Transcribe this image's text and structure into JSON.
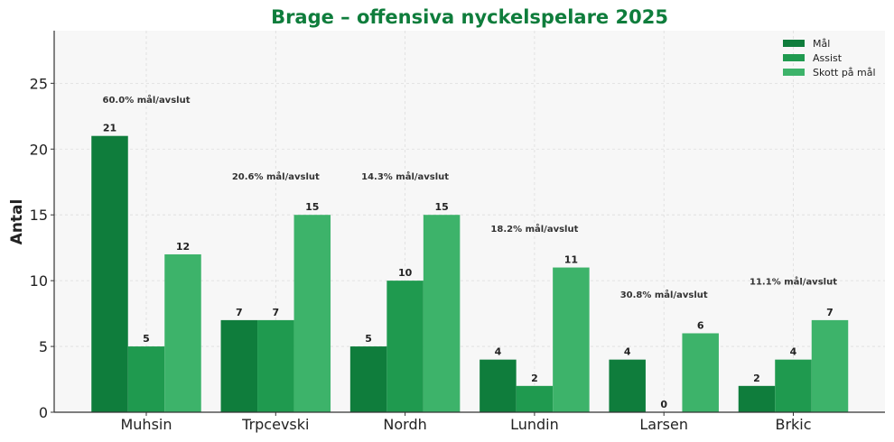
{
  "chart_data": {
    "type": "bar",
    "title": "Brage – offensiva nyckelspelare 2025",
    "xlabel": "",
    "ylabel": "Antal",
    "categories": [
      "Muhsin",
      "Trpcevski",
      "Nordh",
      "Lundin",
      "Larsen",
      "Brkic"
    ],
    "series": [
      {
        "name": "Mål",
        "values": [
          21,
          7,
          5,
          4,
          4,
          2
        ],
        "color": "#0f7d3c"
      },
      {
        "name": "Assist",
        "values": [
          5,
          7,
          10,
          2,
          0,
          4
        ],
        "color": "#1f9a4f"
      },
      {
        "name": "Skott på mål",
        "values": [
          12,
          15,
          15,
          11,
          6,
          7
        ],
        "color": "#3db36a"
      }
    ],
    "annotations": [
      "60.0% mål/avslut",
      "20.6% mål/avslut",
      "14.3% mål/avslut",
      "18.2% mål/avslut",
      "30.8% mål/avslut",
      "11.1% mål/avslut"
    ],
    "annotation_y": [
      23.5,
      17.7,
      17.7,
      13.7,
      8.7,
      9.7
    ],
    "ylim": [
      0,
      29
    ],
    "yticks": [
      0,
      5,
      10,
      15,
      20,
      25
    ],
    "grid": true,
    "legend_position": "top-right",
    "colors": {
      "title": "#0f7d3c",
      "background": "#f7f7f7",
      "axis": "#333333"
    }
  }
}
